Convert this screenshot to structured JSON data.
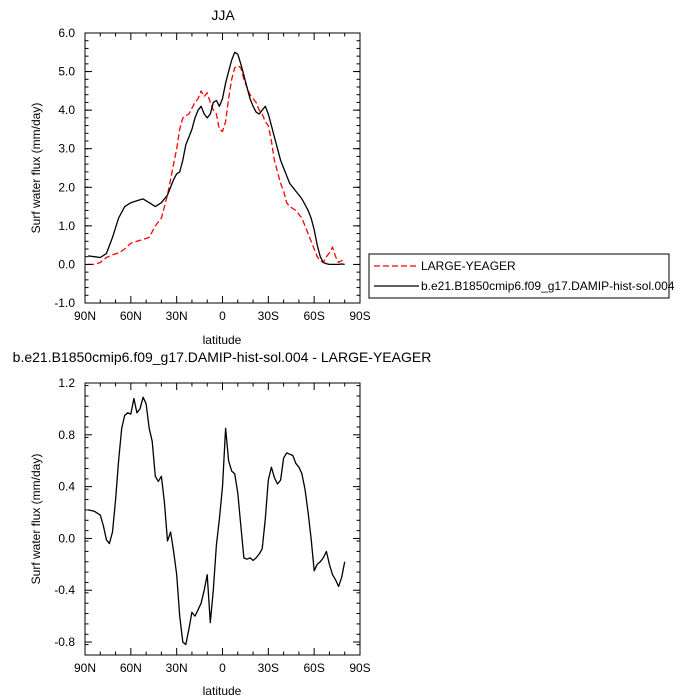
{
  "chart_data": [
    {
      "type": "line",
      "title": "JJA",
      "xlabel": "latitude",
      "ylabel": "Surf water flux (mm/day)",
      "xlim": [
        90,
        -90
      ],
      "ylim": [
        -1.0,
        6.0
      ],
      "x_ticks": [
        90,
        60,
        30,
        0,
        -30,
        -60,
        -90
      ],
      "x_tick_labels": [
        "90N",
        "60N",
        "30N",
        "0",
        "30S",
        "60S",
        "90S"
      ],
      "y_ticks": [
        -1,
        0,
        1,
        2,
        3,
        4,
        5,
        6
      ],
      "y_tick_labels": [
        "-1.0",
        "0.0",
        "1.0",
        "2.0",
        "3.0",
        "4.0",
        "5.0",
        "6.0"
      ],
      "grid": false,
      "legend_position": "right",
      "series": [
        {
          "name": "LARGE-YEAGER",
          "color": "#ff0000",
          "dash": "dashed",
          "x": [
            88,
            84,
            80,
            76,
            72,
            68,
            64,
            60,
            56,
            52,
            48,
            44,
            40,
            36,
            32,
            30,
            28,
            26,
            24,
            22,
            20,
            18,
            16,
            14,
            12,
            10,
            8,
            6,
            4,
            2,
            0,
            -2,
            -4,
            -6,
            -8,
            -10,
            -12,
            -14,
            -16,
            -18,
            -20,
            -22,
            -24,
            -26,
            -28,
            -30,
            -32,
            -34,
            -36,
            -38,
            -40,
            -42,
            -44,
            -46,
            -48,
            -50,
            -52,
            -54,
            -56,
            -58,
            -60,
            -62,
            -64,
            -66,
            -68,
            -70,
            -72,
            -74,
            -76,
            -78,
            -80
          ],
          "y": [
            0.0,
            0.0,
            0.05,
            0.18,
            0.25,
            0.3,
            0.4,
            0.55,
            0.6,
            0.65,
            0.7,
            1.0,
            1.2,
            1.8,
            2.6,
            3.0,
            3.5,
            3.8,
            3.85,
            3.9,
            4.05,
            4.2,
            4.3,
            4.5,
            4.35,
            4.45,
            4.2,
            4.0,
            3.9,
            3.5,
            3.45,
            3.7,
            4.3,
            4.8,
            5.1,
            5.15,
            5.1,
            4.8,
            4.6,
            4.4,
            4.3,
            4.2,
            4.0,
            3.9,
            3.7,
            3.6,
            3.2,
            2.7,
            2.4,
            2.1,
            1.9,
            1.6,
            1.5,
            1.45,
            1.4,
            1.3,
            1.2,
            1.0,
            0.8,
            0.6,
            0.4,
            0.2,
            0.1,
            0.05,
            0.2,
            0.3,
            0.45,
            0.2,
            0.05,
            0.1,
            0.15
          ]
        },
        {
          "name": "b.e21.B1850cmip6.f09_g17.DAMIP-hist-sol.004",
          "color": "#000000",
          "dash": "solid",
          "x": [
            88,
            84,
            80,
            76,
            72,
            68,
            64,
            60,
            56,
            52,
            48,
            44,
            40,
            36,
            32,
            30,
            28,
            26,
            24,
            22,
            20,
            18,
            16,
            14,
            12,
            10,
            8,
            6,
            4,
            2,
            0,
            -2,
            -4,
            -6,
            -8,
            -10,
            -12,
            -14,
            -16,
            -18,
            -20,
            -22,
            -24,
            -26,
            -28,
            -30,
            -32,
            -34,
            -36,
            -38,
            -40,
            -42,
            -44,
            -46,
            -48,
            -50,
            -52,
            -54,
            -56,
            -58,
            -60,
            -62,
            -64,
            -66,
            -68,
            -70,
            -72,
            -74,
            -76,
            -78,
            -80
          ],
          "y": [
            0.22,
            0.2,
            0.18,
            0.28,
            0.7,
            1.2,
            1.5,
            1.6,
            1.65,
            1.7,
            1.6,
            1.5,
            1.6,
            1.8,
            2.2,
            2.35,
            2.4,
            2.7,
            3.1,
            3.3,
            3.5,
            3.8,
            4.0,
            4.1,
            3.9,
            3.8,
            3.9,
            4.2,
            4.25,
            4.1,
            4.3,
            4.7,
            5.0,
            5.3,
            5.5,
            5.45,
            5.2,
            4.9,
            4.6,
            4.3,
            4.1,
            3.95,
            3.9,
            4.0,
            4.1,
            3.9,
            3.6,
            3.3,
            3.0,
            2.7,
            2.5,
            2.3,
            2.1,
            2.0,
            1.9,
            1.8,
            1.7,
            1.55,
            1.4,
            1.2,
            0.9,
            0.5,
            0.2,
            0.05,
            0.02,
            0.0,
            0.0,
            0.0,
            0.0,
            0.01,
            0.0
          ]
        }
      ]
    },
    {
      "type": "line",
      "title": "b.e21.B1850cmip6.f09_g17.DAMIP-hist-sol.004 - LARGE-YEAGER",
      "xlabel": "latitude",
      "ylabel": "Surf water flux (mm/day)",
      "xlim": [
        90,
        -90
      ],
      "ylim": [
        -0.9,
        1.2
      ],
      "x_ticks": [
        90,
        60,
        30,
        0,
        -30,
        -60,
        -90
      ],
      "x_tick_labels": [
        "90N",
        "60N",
        "30N",
        "0",
        "30S",
        "60S",
        "90S"
      ],
      "y_ticks": [
        -0.8,
        -0.4,
        0.0,
        0.4,
        0.8,
        1.2
      ],
      "y_tick_labels": [
        "-0.8",
        "-0.4",
        "0.0",
        "0.4",
        "0.8",
        "1.2"
      ],
      "grid": false,
      "series": [
        {
          "color": "#000000",
          "dash": "solid",
          "x": [
            88,
            84,
            80,
            78,
            76,
            74,
            72,
            70,
            68,
            66,
            64,
            62,
            60,
            58,
            56,
            54,
            52,
            50,
            48,
            46,
            44,
            42,
            40,
            38,
            36,
            34,
            32,
            30,
            28,
            26,
            24,
            22,
            20,
            18,
            16,
            14,
            12,
            10,
            8,
            6,
            4,
            2,
            0,
            -2,
            -4,
            -6,
            -8,
            -10,
            -12,
            -14,
            -16,
            -18,
            -20,
            -22,
            -24,
            -26,
            -28,
            -30,
            -32,
            -34,
            -36,
            -38,
            -40,
            -42,
            -44,
            -46,
            -48,
            -50,
            -52,
            -54,
            -56,
            -58,
            -60,
            -62,
            -64,
            -66,
            -68,
            -70,
            -72,
            -74,
            -76,
            -78,
            -80
          ],
          "y": [
            0.22,
            0.21,
            0.18,
            0.1,
            -0.01,
            -0.04,
            0.05,
            0.3,
            0.6,
            0.85,
            0.95,
            0.97,
            0.96,
            1.08,
            0.97,
            1.0,
            1.09,
            1.04,
            0.85,
            0.75,
            0.48,
            0.44,
            0.48,
            0.28,
            -0.02,
            0.05,
            -0.1,
            -0.28,
            -0.6,
            -0.8,
            -0.82,
            -0.7,
            -0.57,
            -0.6,
            -0.55,
            -0.5,
            -0.4,
            -0.28,
            -0.65,
            -0.4,
            -0.05,
            0.15,
            0.4,
            0.85,
            0.6,
            0.52,
            0.5,
            0.35,
            0.1,
            -0.15,
            -0.16,
            -0.15,
            -0.17,
            -0.15,
            -0.12,
            -0.08,
            0.15,
            0.45,
            0.55,
            0.47,
            0.42,
            0.45,
            0.62,
            0.66,
            0.65,
            0.64,
            0.58,
            0.55,
            0.5,
            0.38,
            0.2,
            0.0,
            -0.25,
            -0.2,
            -0.18,
            -0.15,
            -0.1,
            -0.2,
            -0.28,
            -0.32,
            -0.37,
            -0.3,
            -0.18
          ]
        }
      ]
    }
  ]
}
